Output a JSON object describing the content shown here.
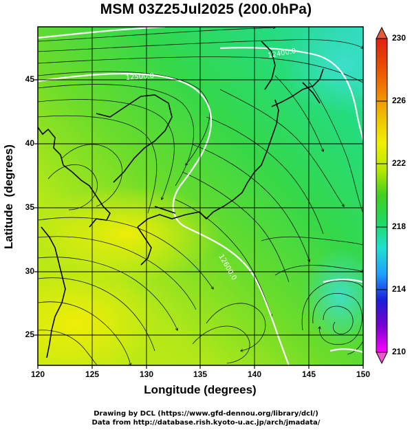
{
  "title": "MSM 03Z25Jul2025 (200.0hPa)",
  "map": {
    "xlabel": "Longitude (degrees)",
    "ylabel": "Latitude  (degrees)",
    "lon_range": [
      120,
      150
    ],
    "lat_range": [
      22.7,
      48
    ],
    "x_ticks": [
      "120",
      "125",
      "130",
      "135",
      "140",
      "145",
      "150"
    ],
    "y_ticks": [
      "25",
      "30",
      "35",
      "40",
      "45"
    ],
    "gridlines": true,
    "contour_labels": [
      "12400.0",
      "12500.0",
      "12600.0"
    ]
  },
  "colorbar": {
    "ticks": [
      "210",
      "214",
      "218",
      "222",
      "226",
      "230"
    ],
    "colors": [
      "#ff00ff",
      "#7a00d0",
      "#1a20d8",
      "#1fa0ff",
      "#20e0d0",
      "#20d860",
      "#40d020",
      "#b8e800",
      "#f0f000",
      "#f0c000",
      "#f08000",
      "#e84a00",
      "#e02010"
    ]
  },
  "credits": {
    "line1": "Drawing by DCL (https://www.gfd-dennou.org/library/dcl/)",
    "line2": "Data from http://database.rish.kyoto-u.ac.jp/arch/jmadata/"
  }
}
